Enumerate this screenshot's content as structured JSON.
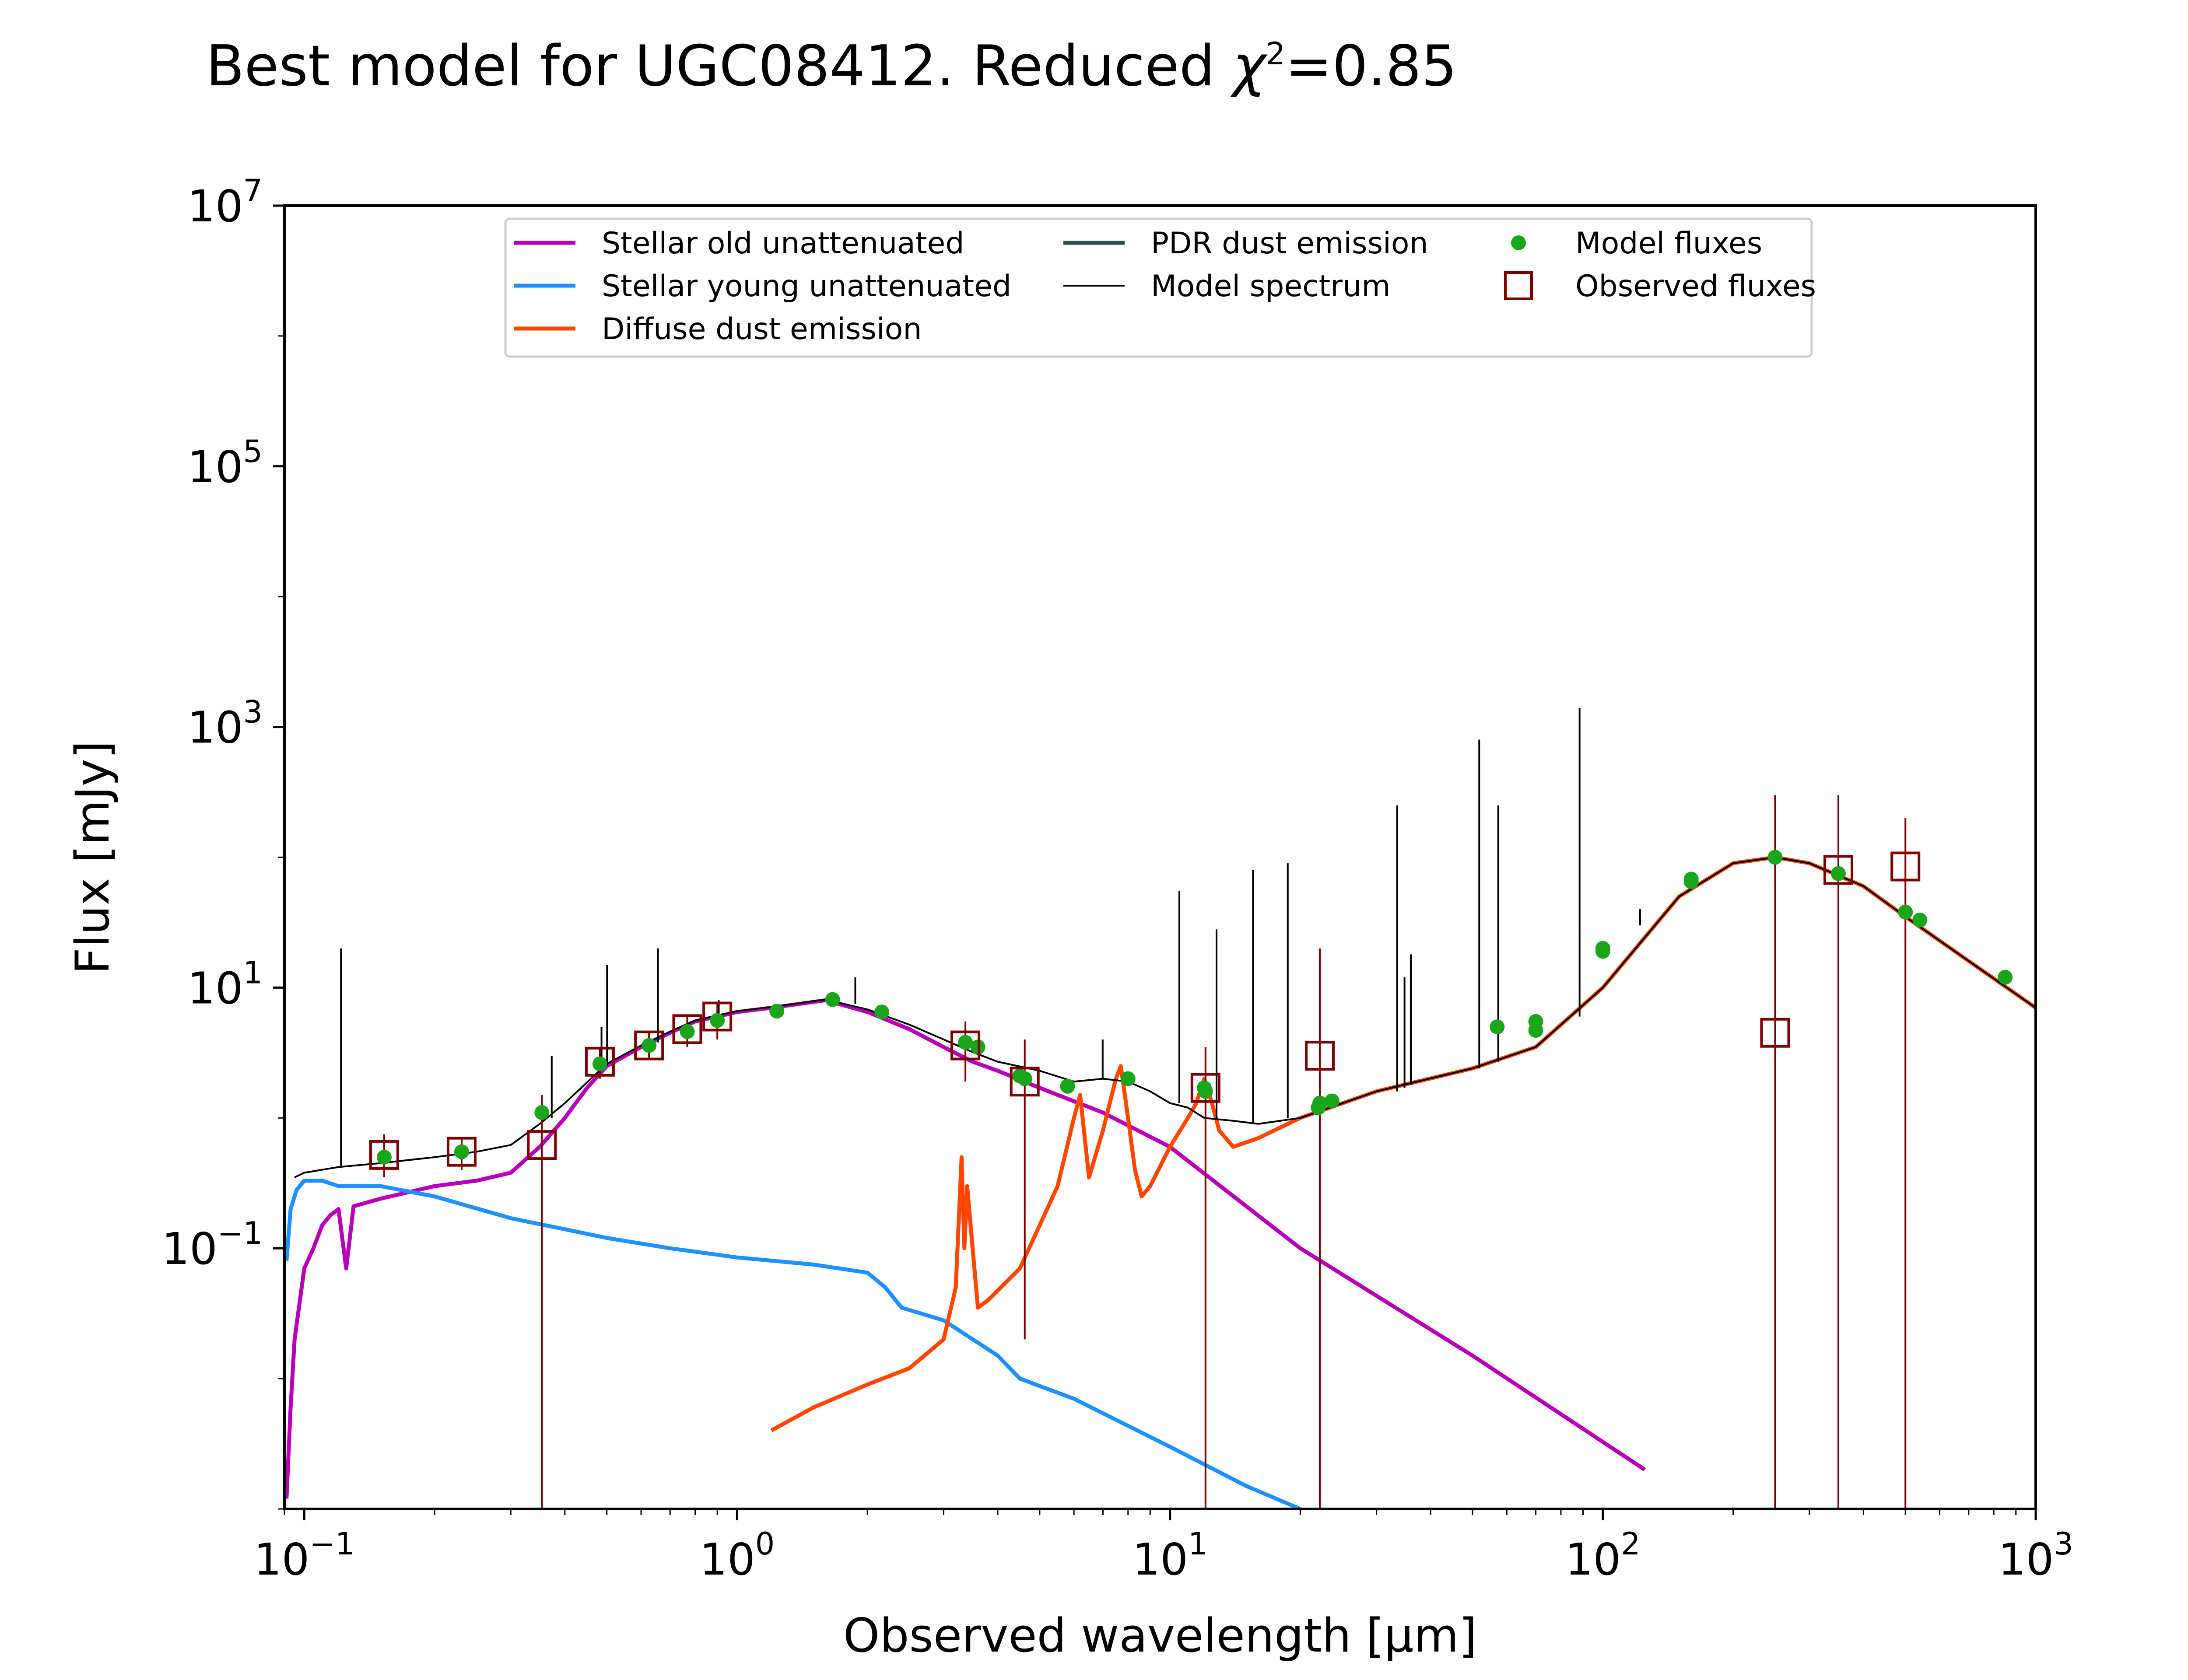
{
  "chart_data": {
    "type": "line",
    "title": "Best model for UGC08412. Reduced χ²=0.85",
    "title_parts": {
      "main": "Best model for UGC08412. Reduced ",
      "chi": "χ",
      "sup": "2",
      "value": "=0.85"
    },
    "xlabel": "Observed wavelength [μm]",
    "ylabel": "Flux [mJy]",
    "x_scale": "log",
    "y_scale": "log",
    "xlim": [
      0.09,
      1000
    ],
    "ylim": [
      0.001,
      10000000
    ],
    "x_ticks": [
      {
        "value": 0.1,
        "base": "10",
        "exp": "−1"
      },
      {
        "value": 1,
        "base": "10",
        "exp": "0"
      },
      {
        "value": 10,
        "base": "10",
        "exp": "1"
      },
      {
        "value": 100,
        "base": "10",
        "exp": "2"
      },
      {
        "value": 1000,
        "base": "10",
        "exp": "3"
      }
    ],
    "y_ticks": [
      {
        "value": 0.1,
        "base": "10",
        "exp": "−1"
      },
      {
        "value": 10,
        "base": "10",
        "exp": "1"
      },
      {
        "value": 1000,
        "base": "10",
        "exp": "3"
      },
      {
        "value": 100000,
        "base": "10",
        "exp": "5"
      },
      {
        "value": 10000000,
        "base": "10",
        "exp": "7"
      }
    ],
    "legend_position": "upper center",
    "grid": false,
    "legend": [
      {
        "label": "Stellar old unattenuated",
        "color": "#bb00bb",
        "kind": "line"
      },
      {
        "label": "Stellar young unattenuated",
        "color": "#1e90ff",
        "kind": "line"
      },
      {
        "label": "Diffuse dust emission",
        "color": "#ff4500",
        "kind": "line"
      },
      {
        "label": "PDR dust emission",
        "color": "#2f4f4f",
        "kind": "line"
      },
      {
        "label": "Model spectrum",
        "color": "#000000",
        "kind": "thinline"
      },
      {
        "label": "Model fluxes",
        "color": "#1aa61a",
        "kind": "dot"
      },
      {
        "label": "Observed fluxes",
        "color": "#800000",
        "kind": "square"
      }
    ],
    "series": [
      {
        "name": "Stellar old unattenuated",
        "color": "#bb00bb",
        "x": [
          0.091,
          0.093,
          0.095,
          0.1,
          0.105,
          0.11,
          0.115,
          0.12,
          0.125,
          0.13,
          0.15,
          0.2,
          0.25,
          0.28,
          0.3,
          0.35,
          0.4,
          0.45,
          0.5,
          0.6,
          0.7,
          0.8,
          1.0,
          1.2,
          1.6,
          2.0,
          2.5,
          3.0,
          3.5,
          4.0,
          5.0,
          7.0,
          10.0,
          20.0,
          50.0,
          125.0
        ],
        "y": [
          0.0012,
          0.006,
          0.02,
          0.07,
          0.1,
          0.15,
          0.18,
          0.2,
          0.07,
          0.21,
          0.24,
          0.3,
          0.33,
          0.36,
          0.38,
          0.6,
          1.0,
          1.7,
          2.5,
          3.5,
          4.5,
          5.5,
          6.5,
          7.0,
          8.0,
          6.5,
          4.8,
          3.5,
          2.7,
          2.3,
          1.7,
          1.1,
          0.6,
          0.1,
          0.015,
          0.002
        ]
      },
      {
        "name": "Stellar young unattenuated",
        "color": "#1e90ff",
        "x": [
          0.091,
          0.093,
          0.096,
          0.1,
          0.11,
          0.12,
          0.15,
          0.2,
          0.3,
          0.4,
          0.5,
          0.7,
          1.0,
          1.5,
          2.0,
          2.2,
          2.4,
          3.0,
          4.0,
          4.5,
          6.0,
          10.0,
          15.0,
          20.0
        ],
        "y": [
          0.08,
          0.2,
          0.28,
          0.33,
          0.33,
          0.3,
          0.3,
          0.25,
          0.17,
          0.14,
          0.12,
          0.1,
          0.085,
          0.075,
          0.065,
          0.05,
          0.035,
          0.028,
          0.015,
          0.01,
          0.007,
          0.003,
          0.0015,
          0.001
        ]
      },
      {
        "name": "Diffuse dust emission",
        "color": "#ff4500",
        "x": [
          1.2,
          1.5,
          2.0,
          2.5,
          3.0,
          3.2,
          3.3,
          3.35,
          3.4,
          3.5,
          3.6,
          3.8,
          4.5,
          5.5,
          6.0,
          6.2,
          6.5,
          7.0,
          7.5,
          7.7,
          8.0,
          8.3,
          8.6,
          9.0,
          10.0,
          11.0,
          11.5,
          12.0,
          12.5,
          13.0,
          14.0,
          16.0,
          20.0,
          30.0,
          50.0,
          70.0,
          100.0,
          150.0,
          200.0,
          250.0,
          300.0,
          400.0,
          500.0,
          700.0,
          1000.0
        ],
        "y": [
          0.004,
          0.006,
          0.009,
          0.012,
          0.02,
          0.05,
          0.5,
          0.1,
          0.3,
          0.1,
          0.035,
          0.04,
          0.07,
          0.3,
          1.0,
          1.5,
          0.35,
          0.8,
          2.0,
          2.5,
          1.0,
          0.4,
          0.25,
          0.3,
          0.6,
          1.0,
          1.3,
          2.0,
          1.3,
          0.8,
          0.6,
          0.7,
          1.0,
          1.6,
          2.4,
          3.5,
          10.0,
          50.0,
          90.0,
          100.0,
          90.0,
          60.0,
          35.0,
          16.0,
          7.0
        ]
      },
      {
        "name": "Model spectrum",
        "color": "#000000",
        "x": [
          0.095,
          0.1,
          0.12,
          0.15,
          0.2,
          0.25,
          0.3,
          0.35,
          0.4,
          0.5,
          0.6,
          0.7,
          0.8,
          1.0,
          1.2,
          1.6,
          2.0,
          2.5,
          3.0,
          3.5,
          4.0,
          5.0,
          6.0,
          7.0,
          8.0,
          9.0,
          10.0,
          11.0,
          12.0,
          14.0,
          16.0,
          20.0,
          30.0,
          50.0,
          70.0,
          100.0,
          150.0,
          200.0,
          250.0,
          300.0,
          400.0,
          500.0,
          700.0,
          1000.0
        ],
        "y": [
          0.35,
          0.38,
          0.42,
          0.45,
          0.5,
          0.55,
          0.62,
          0.9,
          1.3,
          2.6,
          3.6,
          4.6,
          5.6,
          6.6,
          7.1,
          8.1,
          6.8,
          5.2,
          4.0,
          3.2,
          2.7,
          2.3,
          1.9,
          2.0,
          1.9,
          1.6,
          1.3,
          1.2,
          1.0,
          0.95,
          0.9,
          1.0,
          1.6,
          2.4,
          3.5,
          10.0,
          50.0,
          90.0,
          100.0,
          90.0,
          60.0,
          35.0,
          16.0,
          7.0
        ]
      },
      {
        "name": "Model spectrum emission lines",
        "color": "#000000",
        "lines": [
          {
            "x": 0.1216,
            "base": 0.42,
            "peak": 20
          },
          {
            "x": 0.373,
            "base": 1.0,
            "peak": 3.0
          },
          {
            "x": 0.4861,
            "base": 2.4,
            "peak": 5.0
          },
          {
            "x": 0.5007,
            "base": 2.5,
            "peak": 15
          },
          {
            "x": 0.6563,
            "base": 3.8,
            "peak": 20
          },
          {
            "x": 0.9069,
            "base": 6.0,
            "peak": 8.0
          },
          {
            "x": 1.875,
            "base": 7.5,
            "peak": 12
          },
          {
            "x": 6.99,
            "base": 2.0,
            "peak": 4.0
          },
          {
            "x": 10.51,
            "base": 1.3,
            "peak": 55
          },
          {
            "x": 12.81,
            "base": 1.0,
            "peak": 28
          },
          {
            "x": 15.55,
            "base": 0.9,
            "peak": 80
          },
          {
            "x": 18.71,
            "base": 1.0,
            "peak": 90
          },
          {
            "x": 33.48,
            "base": 1.6,
            "peak": 250
          },
          {
            "x": 34.82,
            "base": 1.7,
            "peak": 12
          },
          {
            "x": 36.01,
            "base": 1.8,
            "peak": 18
          },
          {
            "x": 51.81,
            "base": 2.4,
            "peak": 800
          },
          {
            "x": 57.32,
            "base": 2.7,
            "peak": 250
          },
          {
            "x": 88.36,
            "base": 6.0,
            "peak": 1400
          },
          {
            "x": 121.9,
            "base": 30,
            "peak": 40
          }
        ]
      }
    ],
    "model_fluxes": {
      "color": "#1aa61a",
      "x": [
        0.153,
        0.231,
        0.354,
        0.482,
        0.626,
        0.767,
        0.9,
        1.235,
        1.662,
        2.159,
        3.368,
        3.6,
        4.5,
        4.618,
        5.8,
        8.0,
        12.0,
        12.08,
        22.0,
        22.19,
        23.68,
        57.0,
        70.0,
        70.0,
        100.0,
        100.0,
        160.0,
        160.0,
        250.0,
        350.0,
        500.0,
        540.0,
        850.0
      ],
      "y": [
        0.5,
        0.55,
        1.1,
        2.6,
        3.6,
        4.6,
        5.6,
        6.6,
        8.1,
        6.5,
        3.8,
        3.5,
        2.1,
        2.0,
        1.75,
        2.0,
        1.7,
        1.6,
        1.2,
        1.3,
        1.35,
        5.0,
        5.5,
        4.7,
        19.0,
        20.0,
        65.0,
        68.0,
        100.0,
        75.0,
        38.0,
        33.0,
        12.0
      ]
    },
    "observed_fluxes": {
      "color": "#800000",
      "points": [
        {
          "x": 0.153,
          "y": 0.52,
          "ylow": 0.35,
          "yhigh": 0.75
        },
        {
          "x": 0.231,
          "y": 0.55,
          "ylow": 0.4,
          "yhigh": 0.7
        },
        {
          "x": 0.354,
          "y": 0.62,
          "ylow": 0.001,
          "yhigh": 1.5
        },
        {
          "x": 0.482,
          "y": 2.7,
          "ylow": 2.0,
          "yhigh": 3.5
        },
        {
          "x": 0.626,
          "y": 3.6,
          "ylow": 2.8,
          "yhigh": 4.5
        },
        {
          "x": 0.767,
          "y": 4.8,
          "ylow": 3.5,
          "yhigh": 6.0
        },
        {
          "x": 0.9,
          "y": 6.0,
          "ylow": 4.0,
          "yhigh": 7.5
        },
        {
          "x": 3.368,
          "y": 3.6,
          "ylow": 1.9,
          "yhigh": 5.5
        },
        {
          "x": 4.618,
          "y": 1.9,
          "ylow": 0.02,
          "yhigh": 4.0
        },
        {
          "x": 12.08,
          "y": 1.7,
          "ylow": 0.001,
          "yhigh": 3.5
        },
        {
          "x": 22.19,
          "y": 3.0,
          "ylow": 0.001,
          "yhigh": 20.0
        },
        {
          "x": 250.0,
          "y": 4.5,
          "ylow": 0.001,
          "yhigh": 300.0
        },
        {
          "x": 350.0,
          "y": 80.0,
          "ylow": 0.001,
          "yhigh": 300.0
        },
        {
          "x": 500.0,
          "y": 85.0,
          "ylow": 0.001,
          "yhigh": 200.0
        }
      ]
    }
  }
}
